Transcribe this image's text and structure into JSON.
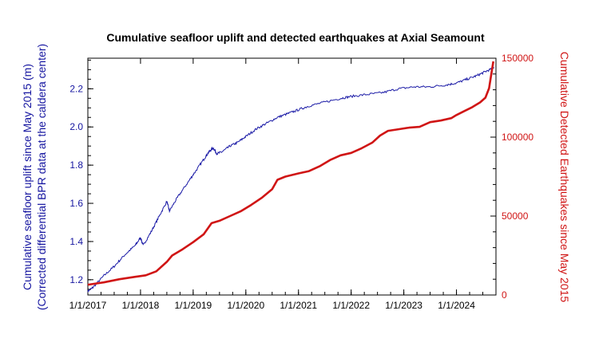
{
  "colors": {
    "uplift": "#1a1aa6",
    "earthquakes": "#d01515",
    "frame": "#000000"
  },
  "chart_data": {
    "type": "line",
    "title": "Cumulative seafloor uplift and detected earthquakes at Axial Seamount",
    "xlabel": "",
    "x_ticks": [
      "1/1/2017",
      "1/1/2018",
      "1/1/2019",
      "1/1/2020",
      "1/1/2021",
      "1/1/2022",
      "1/1/2023",
      "1/1/2024"
    ],
    "xlim": [
      2017.0,
      2024.75
    ],
    "y_left": {
      "label_line1": "Cumulative seafloor uplift since May 2015 (m)",
      "label_line2": "(Corrected differential BPR data at the caldera center)",
      "ticks": [
        "1.2",
        "1.4",
        "1.6",
        "1.8",
        "2.0",
        "2.2"
      ],
      "tick_values": [
        1.2,
        1.4,
        1.6,
        1.8,
        2.0,
        2.2
      ],
      "ylim": [
        1.12,
        2.36
      ]
    },
    "y_right": {
      "label": "Cumulative Detected Earthquakes since May 2015",
      "ticks": [
        "0",
        "50000",
        "100000",
        "150000"
      ],
      "tick_values": [
        0,
        50000,
        100000,
        150000
      ],
      "ylim": [
        0,
        150000
      ]
    },
    "series": [
      {
        "name": "Cumulative seafloor uplift (m)",
        "axis": "left",
        "x": [
          2017.0,
          2017.1,
          2017.3,
          2017.5,
          2017.7,
          2017.9,
          2018.0,
          2018.05,
          2018.2,
          2018.35,
          2018.5,
          2018.55,
          2018.7,
          2018.9,
          2019.05,
          2019.2,
          2019.3,
          2019.38,
          2019.45,
          2019.55,
          2019.7,
          2019.85,
          2020.0,
          2020.2,
          2020.4,
          2020.6,
          2020.8,
          2021.0,
          2021.2,
          2021.5,
          2021.8,
          2022.0,
          2022.3,
          2022.6,
          2022.9,
          2023.2,
          2023.5,
          2023.8,
          2024.0,
          2024.2,
          2024.4,
          2024.55,
          2024.72
        ],
        "values": [
          1.14,
          1.16,
          1.22,
          1.27,
          1.33,
          1.38,
          1.42,
          1.38,
          1.45,
          1.53,
          1.61,
          1.56,
          1.63,
          1.71,
          1.77,
          1.83,
          1.87,
          1.89,
          1.86,
          1.87,
          1.9,
          1.92,
          1.95,
          1.99,
          2.02,
          2.05,
          2.07,
          2.09,
          2.11,
          2.13,
          2.15,
          2.16,
          2.17,
          2.18,
          2.2,
          2.21,
          2.21,
          2.22,
          2.23,
          2.25,
          2.27,
          2.29,
          2.31
        ]
      },
      {
        "name": "Cumulative detected earthquakes",
        "axis": "right",
        "x": [
          2017.0,
          2017.3,
          2017.6,
          2017.9,
          2018.1,
          2018.3,
          2018.5,
          2018.6,
          2018.8,
          2019.0,
          2019.2,
          2019.35,
          2019.5,
          2019.7,
          2019.9,
          2020.1,
          2020.3,
          2020.5,
          2020.6,
          2020.75,
          2021.0,
          2021.2,
          2021.4,
          2021.6,
          2021.8,
          2022.0,
          2022.2,
          2022.4,
          2022.55,
          2022.7,
          2022.9,
          2023.1,
          2023.3,
          2023.5,
          2023.7,
          2023.9,
          2024.0,
          2024.15,
          2024.3,
          2024.45,
          2024.55,
          2024.62,
          2024.7
        ],
        "values": [
          6500,
          8000,
          10000,
          11500,
          12500,
          15000,
          21000,
          25000,
          29000,
          33500,
          38500,
          45500,
          47000,
          50000,
          53000,
          57000,
          61500,
          67000,
          73000,
          75000,
          77000,
          78500,
          81500,
          85500,
          88500,
          90000,
          93000,
          96500,
          101000,
          104000,
          105000,
          106000,
          106500,
          109500,
          110500,
          112000,
          114000,
          116500,
          119000,
          122000,
          125000,
          131000,
          148000
        ]
      }
    ]
  }
}
